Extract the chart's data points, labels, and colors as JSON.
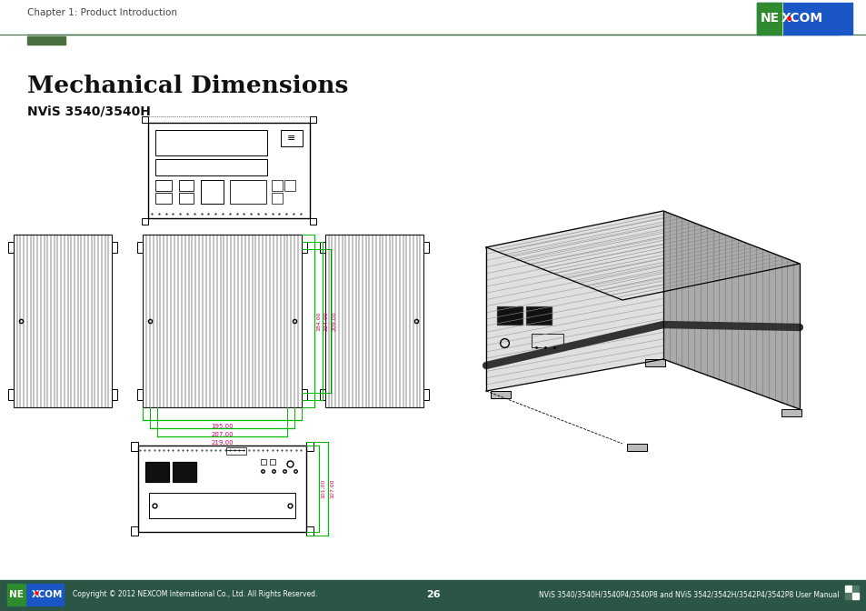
{
  "page_title": "Chapter 1: Product Introduction",
  "main_title": "Mechanical Dimensions",
  "subtitle": "NViS 3540/3540H",
  "page_number": "26",
  "footer_left": "Copyright © 2012 NEXCOM International Co., Ltd. All Rights Reserved.",
  "footer_right": "NViS 3540/3540H/3540P4/3540P8 and NViS 3542/3542H/3542P4/3542P8 User Manual",
  "bg_color": "#ffffff",
  "header_line_color": "#3d6b3d",
  "header_accent_color": "#4a7040",
  "footer_bar_color": "#2b5545",
  "nexcom_green": "#2e8b2e",
  "nexcom_blue": "#1a56c4",
  "dim_line_color": "#00bb00",
  "dim_text_color": "#cc0066",
  "top_view_dims": [
    "195.00",
    "207.00",
    "219.00"
  ],
  "side_height_dims": [
    "184.00",
    "224.00",
    "209.00"
  ],
  "bottom_view_heights": [
    "101.00",
    "107.00"
  ]
}
